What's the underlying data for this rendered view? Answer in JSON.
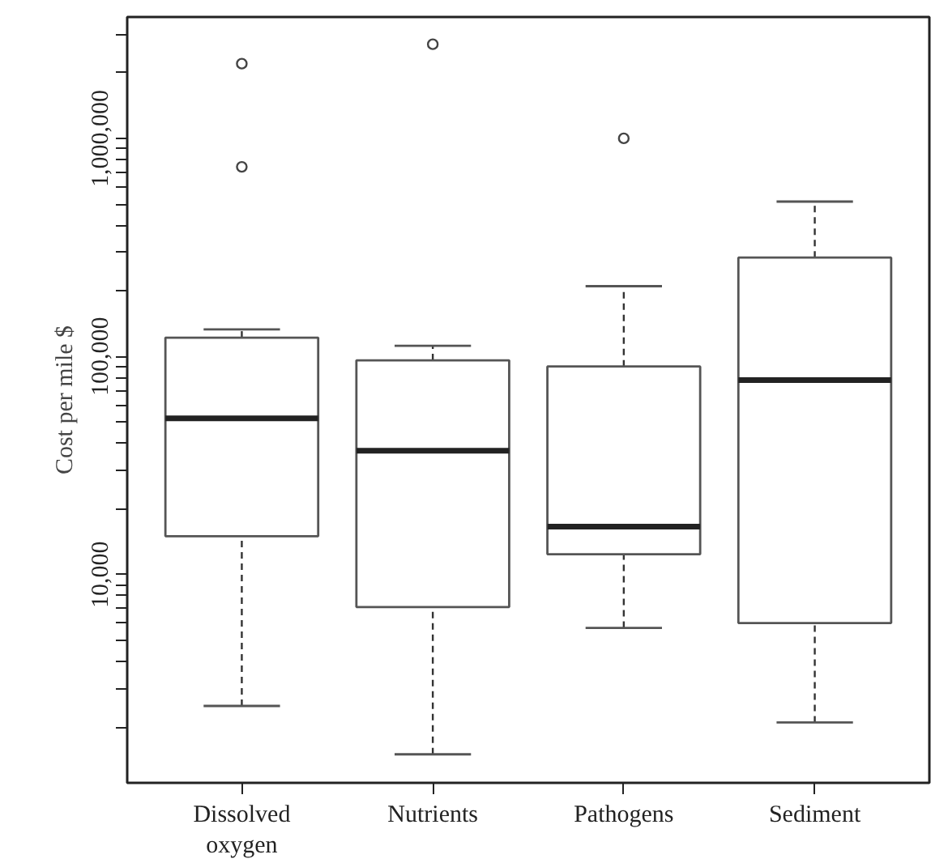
{
  "chart_data": {
    "type": "box",
    "ylabel": "Cost per mile $",
    "categories": [
      "Dissolved oxygen",
      "Nutrients",
      "Pathogens",
      "Sediment"
    ],
    "log": "y",
    "ylim": [
      1110,
      3600000
    ],
    "yticks": [
      {
        "value": 2000,
        "label": null
      },
      {
        "value": 3000,
        "label": null
      },
      {
        "value": 4000,
        "label": null
      },
      {
        "value": 5000,
        "label": null
      },
      {
        "value": 6000,
        "label": null
      },
      {
        "value": 7000,
        "label": null
      },
      {
        "value": 8000,
        "label": null
      },
      {
        "value": 9000,
        "label": null
      },
      {
        "value": 10000,
        "label": "10,000"
      },
      {
        "value": 20000,
        "label": null
      },
      {
        "value": 30000,
        "label": null
      },
      {
        "value": 40000,
        "label": null
      },
      {
        "value": 50000,
        "label": null
      },
      {
        "value": 60000,
        "label": null
      },
      {
        "value": 70000,
        "label": null
      },
      {
        "value": 80000,
        "label": null
      },
      {
        "value": 90000,
        "label": null
      },
      {
        "value": 100000,
        "label": "100,000"
      },
      {
        "value": 200000,
        "label": null
      },
      {
        "value": 300000,
        "label": null
      },
      {
        "value": 400000,
        "label": null
      },
      {
        "value": 500000,
        "label": null
      },
      {
        "value": 600000,
        "label": null
      },
      {
        "value": 700000,
        "label": null
      },
      {
        "value": 800000,
        "label": null
      },
      {
        "value": 900000,
        "label": null
      },
      {
        "value": 1000000,
        "label": "1,000,000"
      },
      {
        "value": 2000000,
        "label": null
      },
      {
        "value": 3000000,
        "label": null
      }
    ],
    "boxes": [
      {
        "low": 2500,
        "q1": 15000,
        "median": 52000,
        "q3": 122000,
        "high": 133000,
        "outliers": [
          740000,
          2200000
        ]
      },
      {
        "low": 1500,
        "q1": 7100,
        "median": 37000,
        "q3": 96000,
        "high": 112000,
        "outliers": [
          2700000
        ]
      },
      {
        "low": 5700,
        "q1": 12400,
        "median": 16600,
        "q3": 90000,
        "high": 210000,
        "outliers": [
          1000000
        ]
      },
      {
        "low": 2100,
        "q1": 6000,
        "median": 78000,
        "q3": 284000,
        "high": 513000
      }
    ],
    "grid": false
  }
}
